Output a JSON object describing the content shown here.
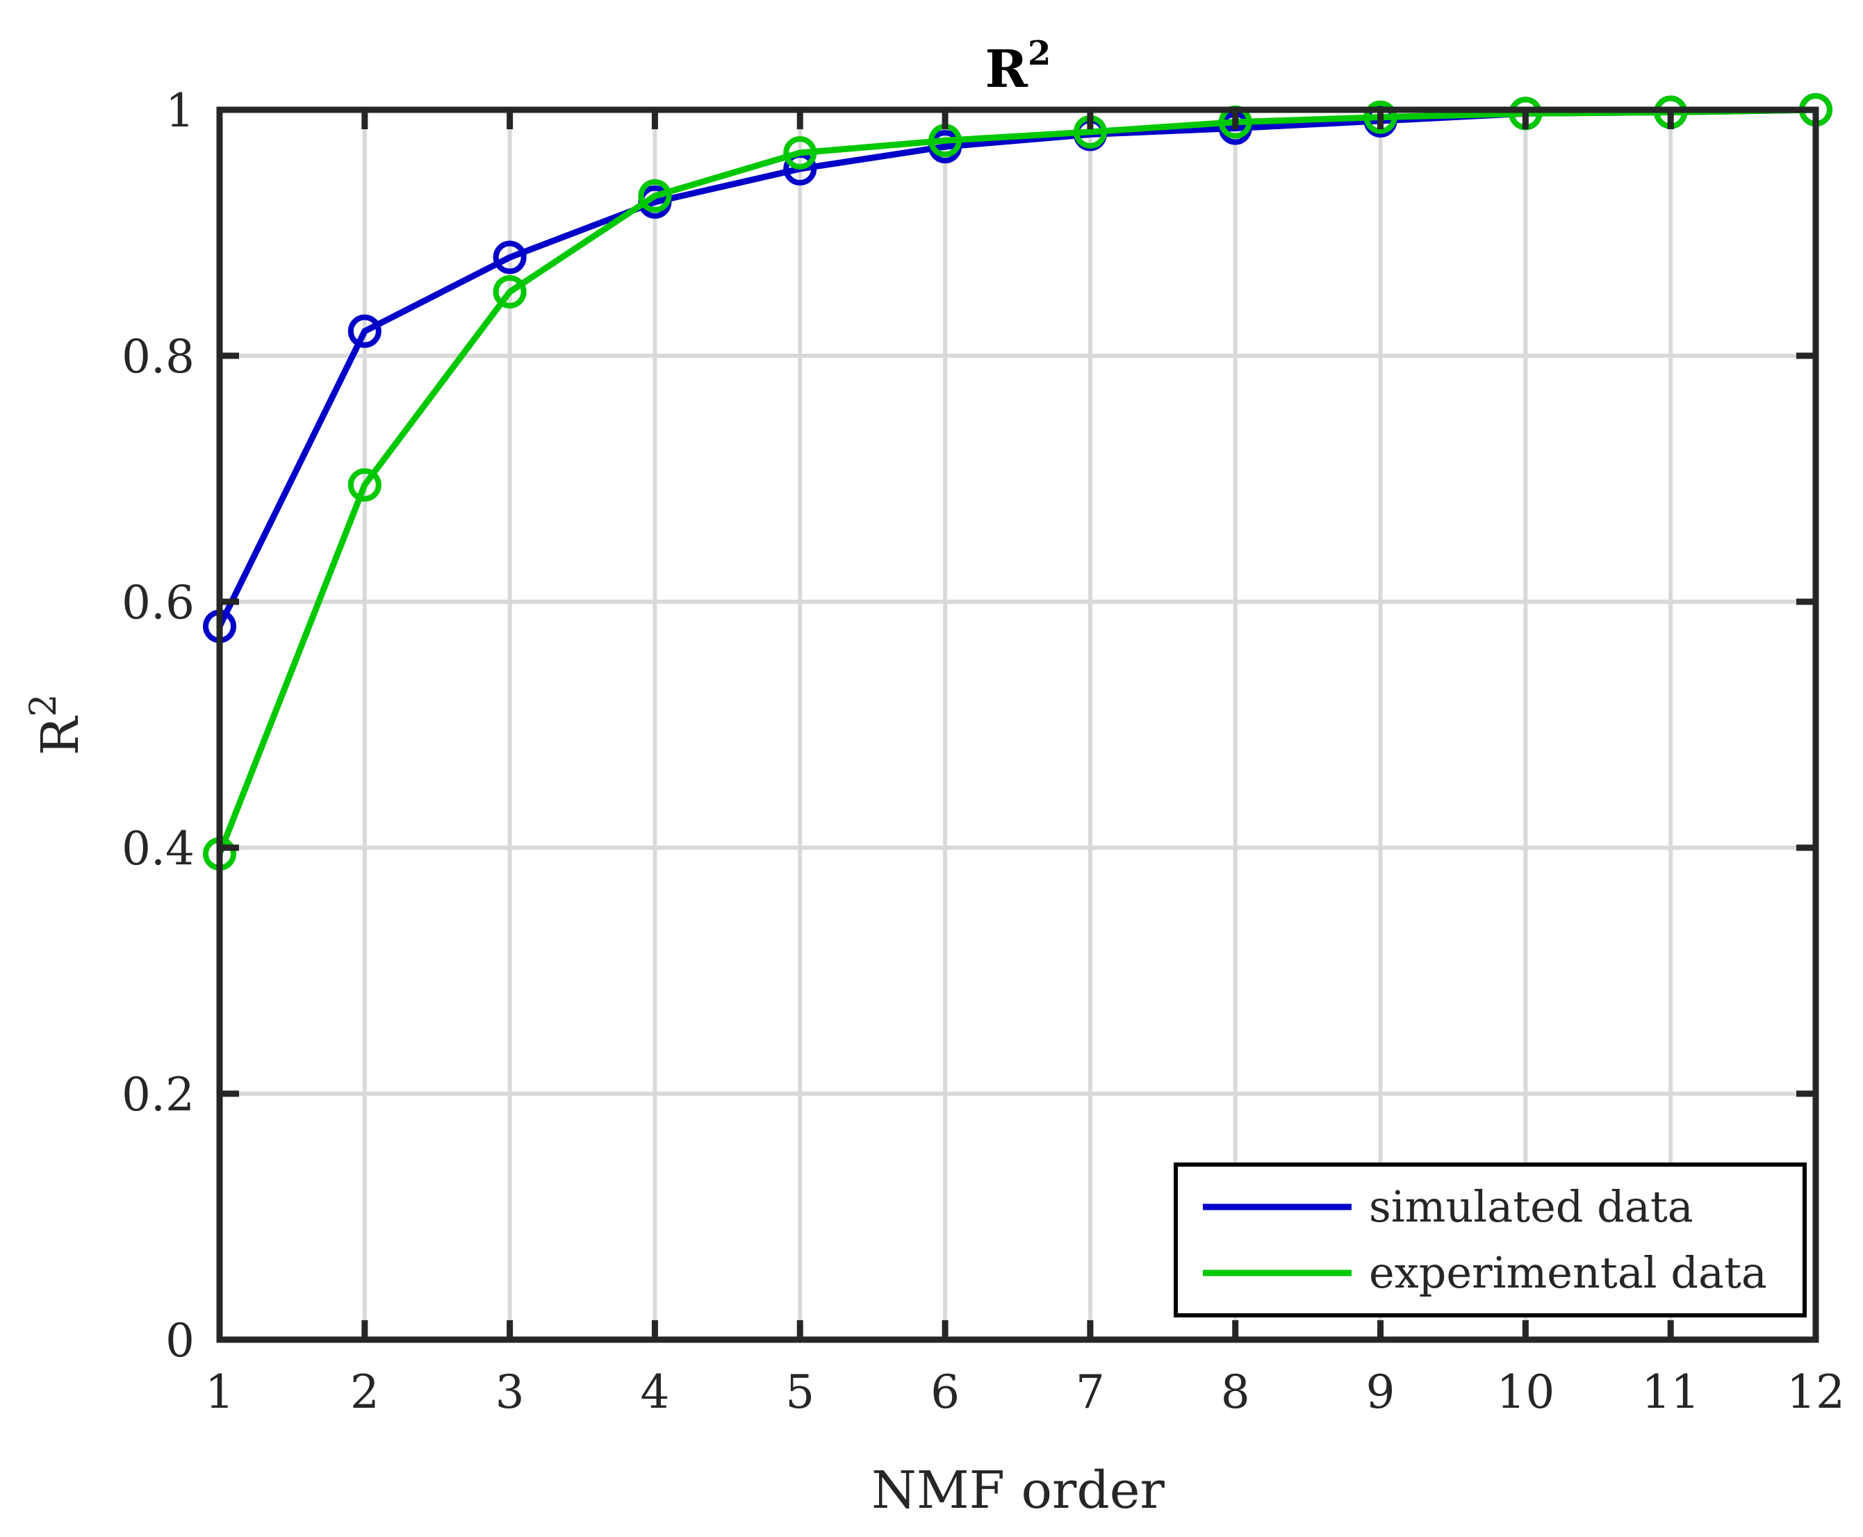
{
  "chart_data": {
    "type": "line",
    "title": "R",
    "title_superscript": "2",
    "xlabel": "NMF order",
    "ylabel": "R",
    "ylabel_superscript": "2",
    "xlim": [
      1,
      12
    ],
    "ylim": [
      0,
      1
    ],
    "grid": true,
    "legend_position": "bottom-right",
    "x": [
      1,
      2,
      3,
      4,
      5,
      6,
      7,
      8,
      9,
      10,
      11,
      12
    ],
    "x_ticks": [
      "1",
      "2",
      "3",
      "4",
      "5",
      "6",
      "7",
      "8",
      "9",
      "10",
      "11",
      "12"
    ],
    "y_ticks": [
      {
        "value": 0,
        "label": "0"
      },
      {
        "value": 0.2,
        "label": "0.2"
      },
      {
        "value": 0.4,
        "label": "0.4"
      },
      {
        "value": 0.6,
        "label": "0.6"
      },
      {
        "value": 0.8,
        "label": "0.8"
      },
      {
        "value": 1,
        "label": "1"
      }
    ],
    "series": [
      {
        "name": "simulated data",
        "color": "#0000c8",
        "marker": "circle",
        "values": [
          0.58,
          0.82,
          0.88,
          0.925,
          0.952,
          0.97,
          0.98,
          0.985,
          0.991,
          0.997,
          0.998,
          1.0
        ]
      },
      {
        "name": "experimental data",
        "color": "#00c800",
        "marker": "circle",
        "values": [
          0.395,
          0.695,
          0.852,
          0.93,
          0.965,
          0.975,
          0.982,
          0.99,
          0.994,
          0.997,
          0.998,
          1.0
        ]
      }
    ]
  }
}
